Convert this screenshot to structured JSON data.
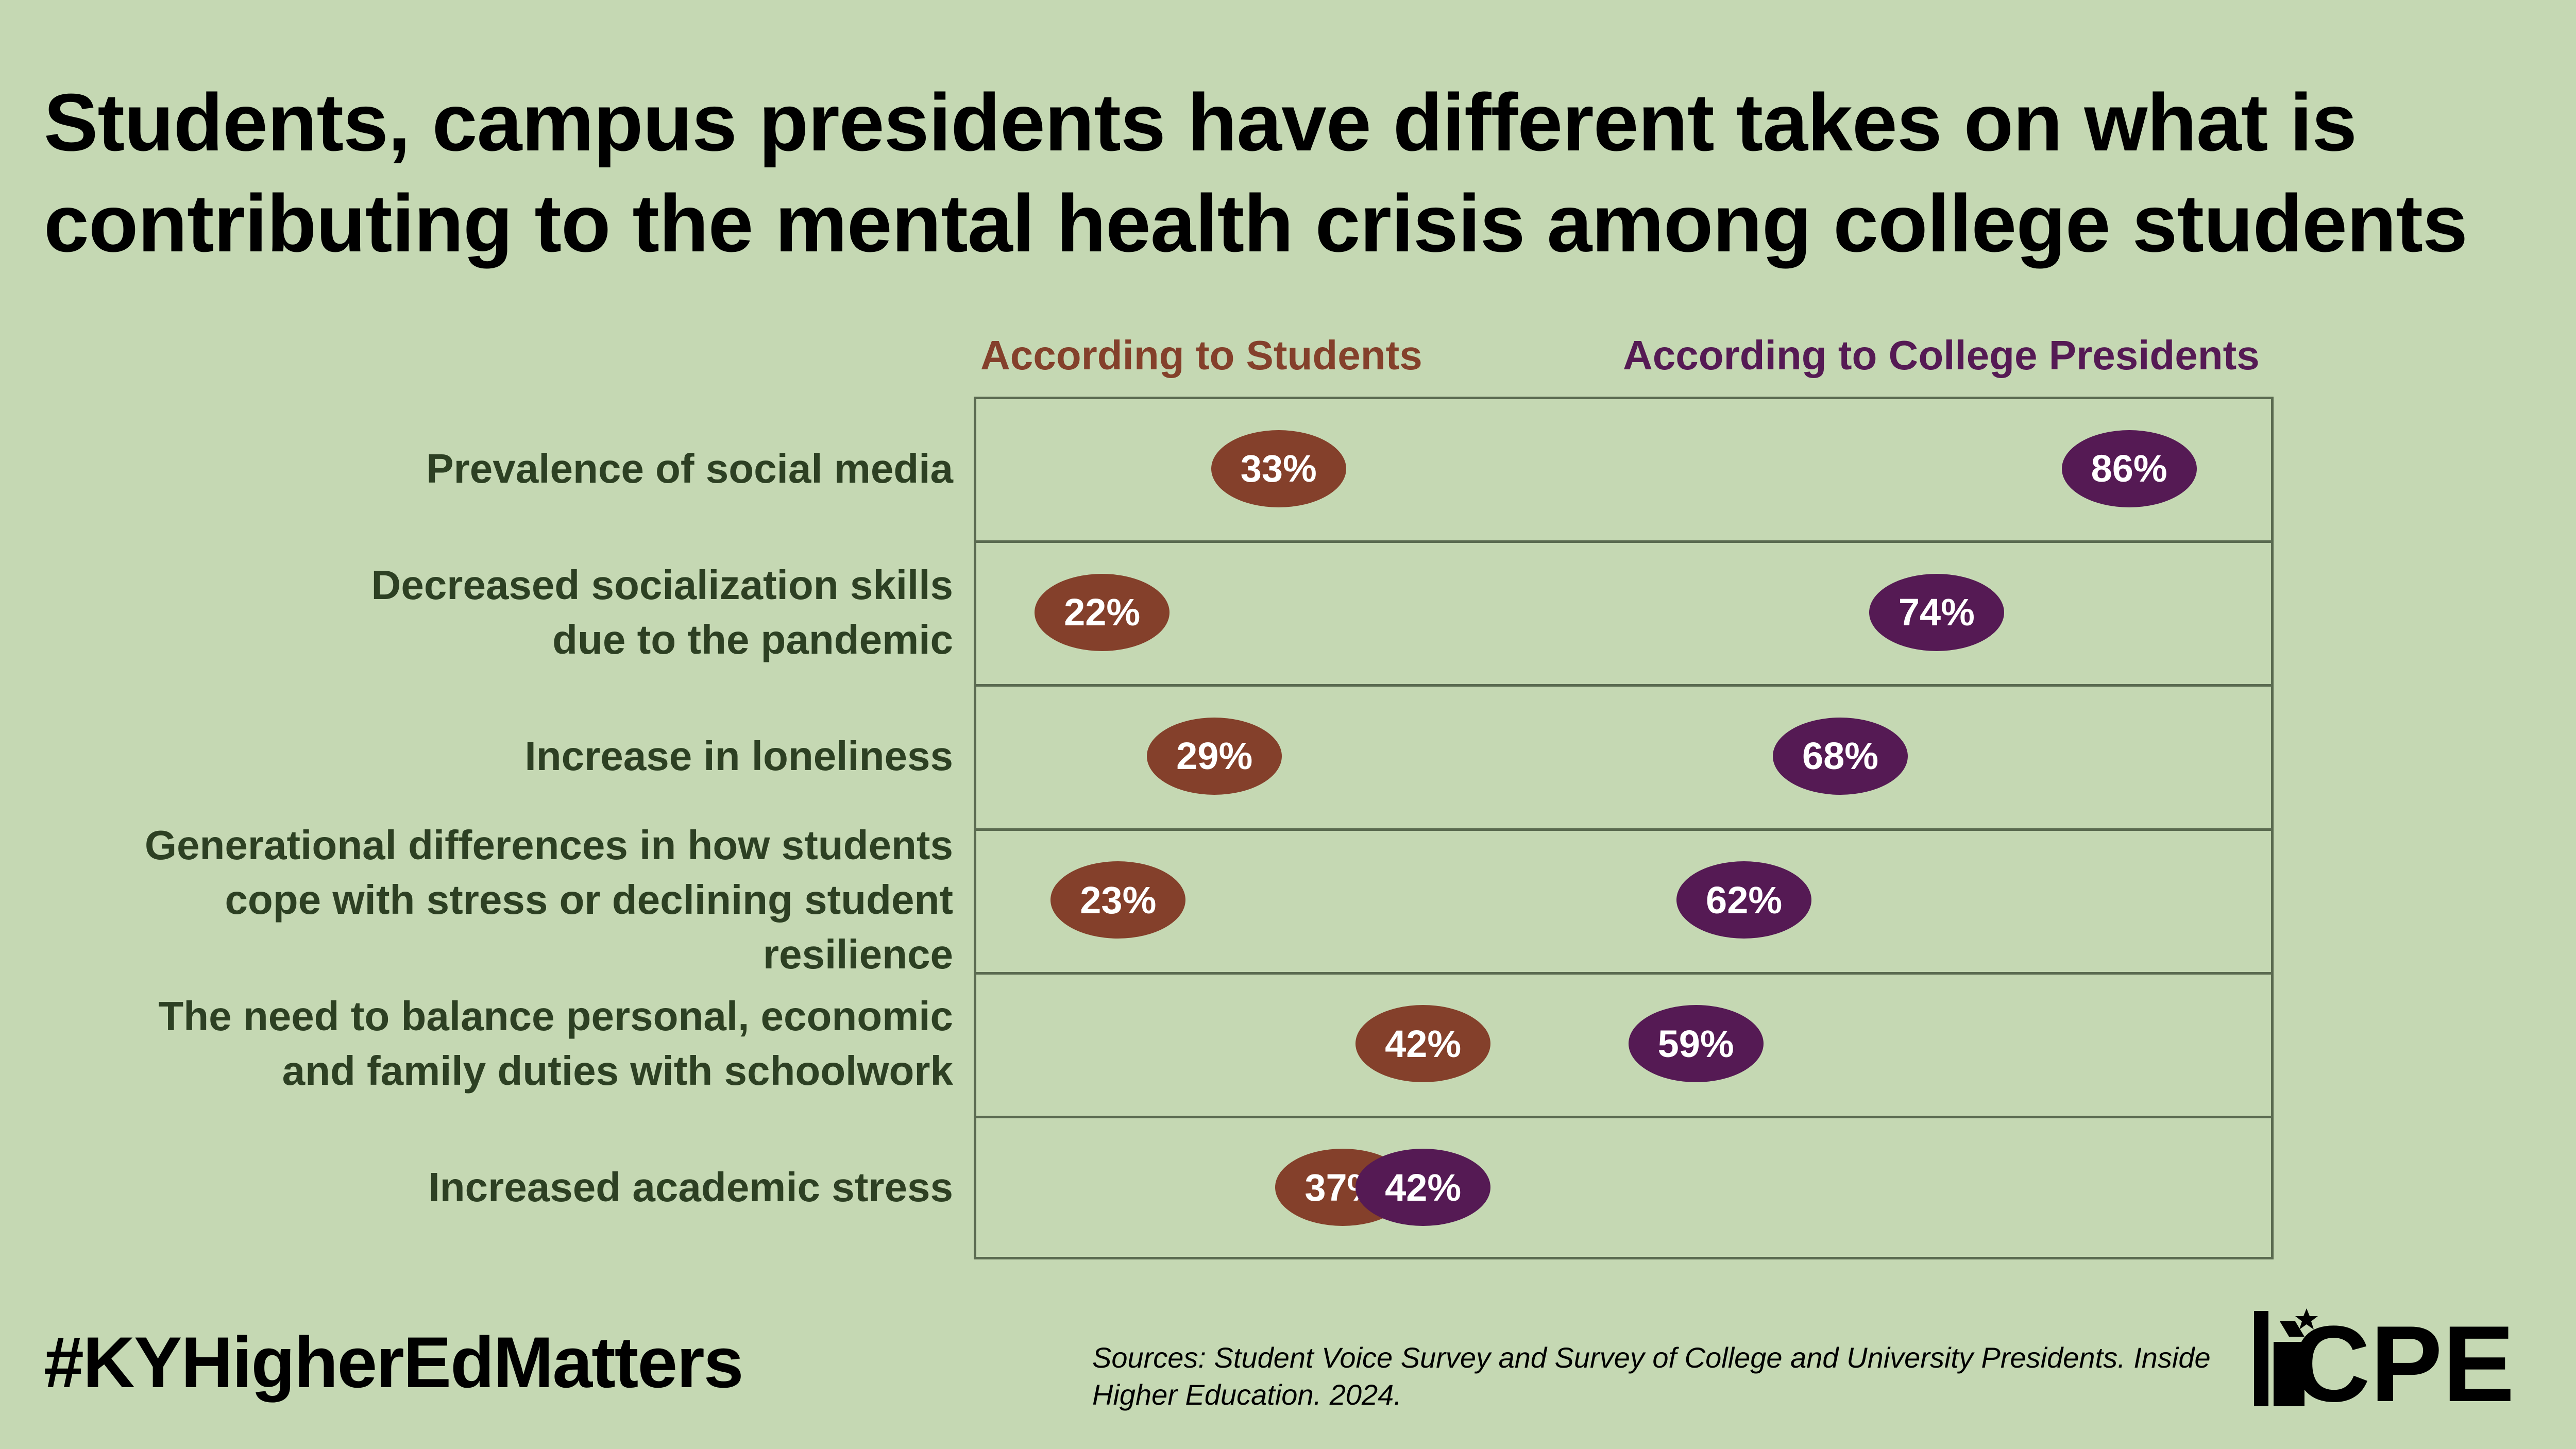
{
  "title": "Students, campus presidents have different takes on what is contributing to the mental health crisis among college students",
  "chart_data": {
    "type": "dot",
    "series": [
      {
        "name": "According to Students",
        "color": "#84402b"
      },
      {
        "name": "According to College Presidents",
        "color": "#551a54"
      }
    ],
    "categories": [
      "Prevalence of social media",
      "Decreased socialization skills \ndue to the pandemic",
      "Increase in loneliness",
      "Generational differences in how students \ncope with stress or declining student \nresilience",
      "The need to balance personal, economic \nand family duties with schoolwork",
      "Increased academic stress"
    ],
    "students": [
      33,
      22,
      29,
      23,
      42,
      37
    ],
    "presidents": [
      86,
      74,
      68,
      62,
      59,
      42
    ],
    "labels_students": [
      "33%",
      "22%",
      "29%",
      "23%",
      "42%",
      "37%"
    ],
    "labels_presidents": [
      "86%",
      "74%",
      "68%",
      "62%",
      "59%",
      "42%"
    ],
    "xlim": [
      14,
      95
    ],
    "grid": false
  },
  "footer": {
    "hashtag": "#KYHigherEdMatters",
    "source": "Sources: Student Voice Survey and Survey of College and University Presidents. Inside Higher Education. 2024.",
    "logo_text": "CPE",
    "logo_icon": "star-figure-icon"
  },
  "colors": {
    "background": "#c5d8b3",
    "students": "#84402b",
    "presidents": "#551a54",
    "label_text": "#2d4023"
  }
}
